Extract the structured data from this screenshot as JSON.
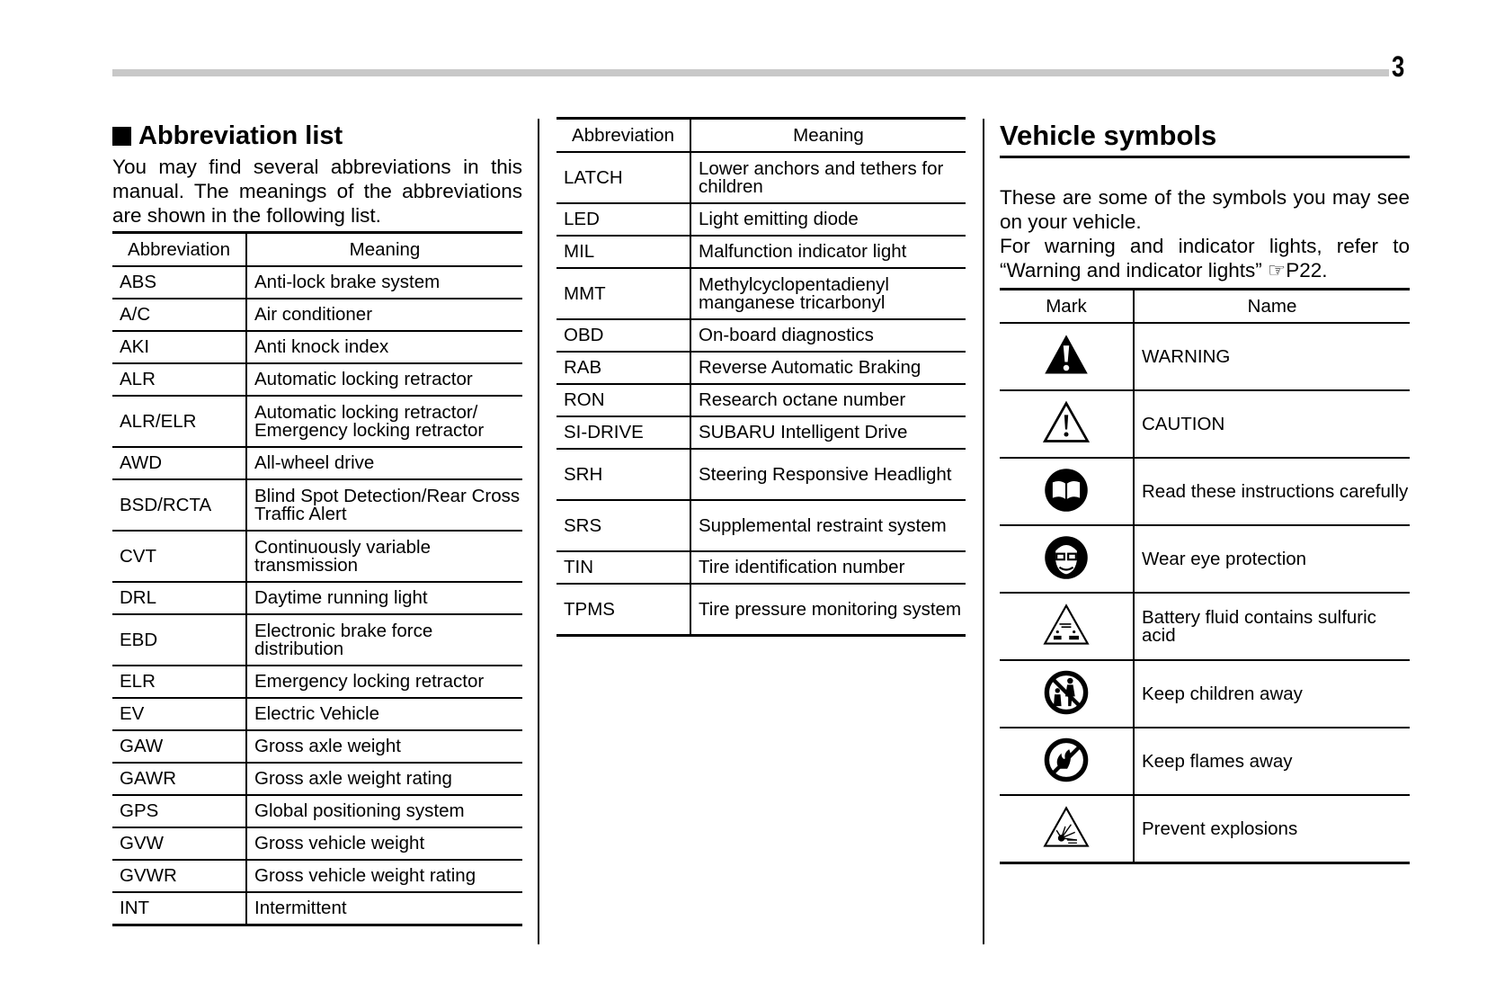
{
  "page_number": "3",
  "abbreviation_section": {
    "title": "Abbreviation list",
    "intro": "You may find several abbreviations in this manual. The meanings of the abbreviations are shown in the following list.",
    "headers": {
      "abbreviation": "Abbreviation",
      "meaning": "Meaning"
    },
    "rows_left": [
      {
        "abbr": "ABS",
        "meaning": "Anti-lock brake system"
      },
      {
        "abbr": "A/C",
        "meaning": "Air conditioner"
      },
      {
        "abbr": "AKI",
        "meaning": "Anti knock index"
      },
      {
        "abbr": "ALR",
        "meaning": "Automatic locking retractor"
      },
      {
        "abbr": "ALR/ELR",
        "meaning": "Automatic locking retractor/ Emergency locking retractor"
      },
      {
        "abbr": "AWD",
        "meaning": "All-wheel drive"
      },
      {
        "abbr": "BSD/RCTA",
        "meaning": "Blind Spot Detection/Rear Cross Traffic Alert"
      },
      {
        "abbr": "CVT",
        "meaning": "Continuously variable transmission"
      },
      {
        "abbr": "DRL",
        "meaning": "Daytime running light"
      },
      {
        "abbr": "EBD",
        "meaning": "Electronic brake force distribution"
      },
      {
        "abbr": "ELR",
        "meaning": "Emergency locking retractor"
      },
      {
        "abbr": "EV",
        "meaning": "Electric Vehicle"
      },
      {
        "abbr": "GAW",
        "meaning": "Gross axle weight"
      },
      {
        "abbr": "GAWR",
        "meaning": "Gross axle weight rating"
      },
      {
        "abbr": "GPS",
        "meaning": "Global positioning system"
      },
      {
        "abbr": "GVW",
        "meaning": "Gross vehicle weight"
      },
      {
        "abbr": "GVWR",
        "meaning": "Gross vehicle weight rating"
      },
      {
        "abbr": "INT",
        "meaning": "Intermittent"
      }
    ],
    "rows_right": [
      {
        "abbr": "LATCH",
        "meaning": "Lower anchors and tethers for children"
      },
      {
        "abbr": "LED",
        "meaning": "Light emitting diode"
      },
      {
        "abbr": "MIL",
        "meaning": "Malfunction indicator light"
      },
      {
        "abbr": "MMT",
        "meaning": "Methylcyclopentadienyl manganese tricarbonyl"
      },
      {
        "abbr": "OBD",
        "meaning": "On-board diagnostics"
      },
      {
        "abbr": "RAB",
        "meaning": "Reverse Automatic Braking"
      },
      {
        "abbr": "RON",
        "meaning": "Research octane number"
      },
      {
        "abbr": "SI-DRIVE",
        "meaning": "SUBARU Intelligent Drive"
      },
      {
        "abbr": "SRH",
        "meaning": "Steering Responsive Headlight"
      },
      {
        "abbr": "SRS",
        "meaning": "Supplemental restraint system"
      },
      {
        "abbr": "TIN",
        "meaning": "Tire identification number"
      },
      {
        "abbr": "TPMS",
        "meaning": "Tire pressure monitoring system"
      }
    ]
  },
  "vehicle_symbols": {
    "title": "Vehicle symbols",
    "intro1": "These are some of the symbols you may see on your vehicle.",
    "intro2": "For warning and indicator lights, refer to “Warning and indicator lights” ☞P22.",
    "headers": {
      "mark": "Mark",
      "name": "Name"
    },
    "rows": [
      {
        "icon": "warning-filled-triangle-icon",
        "name": "WARNING"
      },
      {
        "icon": "caution-outline-triangle-icon",
        "name": "CAUTION"
      },
      {
        "icon": "read-instructions-icon",
        "name": "Read these instructions carefully"
      },
      {
        "icon": "eye-protection-icon",
        "name": "Wear eye protection"
      },
      {
        "icon": "battery-acid-icon",
        "name": "Battery fluid contains sulfuric acid"
      },
      {
        "icon": "keep-children-away-icon",
        "name": "Keep children away"
      },
      {
        "icon": "keep-flames-away-icon",
        "name": "Keep flames away"
      },
      {
        "icon": "prevent-explosions-icon",
        "name": "Prevent explosions"
      }
    ]
  }
}
